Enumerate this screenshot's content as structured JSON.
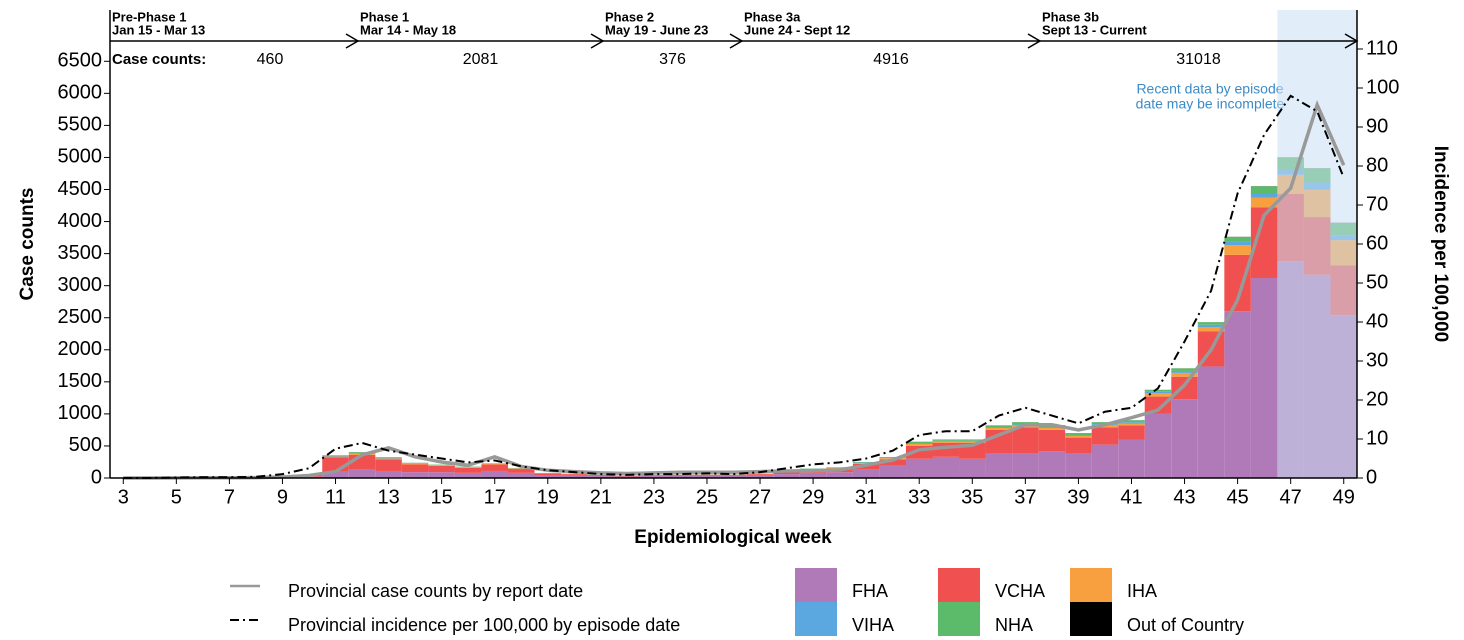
{
  "chart_data": {
    "type": "bar",
    "x": [
      3,
      4,
      5,
      6,
      7,
      8,
      9,
      10,
      11,
      12,
      13,
      14,
      15,
      16,
      17,
      18,
      19,
      20,
      21,
      22,
      23,
      24,
      25,
      26,
      27,
      28,
      29,
      30,
      31,
      32,
      33,
      34,
      35,
      36,
      37,
      38,
      39,
      40,
      41,
      42,
      43,
      44,
      45,
      46,
      47,
      48,
      49
    ],
    "xlim": [
      2.5,
      49.5
    ],
    "xticks": [
      3,
      5,
      7,
      9,
      11,
      13,
      15,
      17,
      19,
      21,
      23,
      25,
      27,
      29,
      31,
      33,
      35,
      37,
      39,
      41,
      43,
      45,
      47,
      49
    ],
    "ylim": [
      0,
      7300
    ],
    "yticks": [
      0,
      500,
      1000,
      1500,
      2000,
      2500,
      3000,
      3500,
      4000,
      4500,
      5000,
      5500,
      6000,
      6500
    ],
    "y2lim": [
      0,
      120
    ],
    "y2ticks": [
      0,
      10,
      20,
      30,
      40,
      50,
      60,
      70,
      80,
      90,
      100,
      110
    ],
    "xlabel": "Epidemiological week",
    "ylabel": "Case counts",
    "y2label": "Incidence per 100,000",
    "annotation": [
      "Recent data by episode",
      "date may be incomplete"
    ],
    "case_counts_label": "Case counts:",
    "phases": [
      {
        "name": "Pre-Phase 1",
        "dates": "Jan 15 - Mar 13",
        "count": 460
      },
      {
        "name": "Phase 1",
        "dates": "Mar 14 - May 18",
        "count": 2081
      },
      {
        "name": "Phase 2",
        "dates": "May 19 - June 23",
        "count": 376
      },
      {
        "name": "Phase 3a",
        "dates": "June 24 - Sept 12",
        "count": 4916
      },
      {
        "name": "Phase 3b",
        "dates": "Sept 13 - Current",
        "count": 31018
      }
    ],
    "series": [
      {
        "name": "FHA",
        "color": "#b07ab8",
        "values": [
          0,
          0,
          0,
          0,
          0,
          0,
          5,
          20,
          100,
          130,
          110,
          90,
          90,
          80,
          110,
          80,
          40,
          40,
          30,
          25,
          30,
          35,
          35,
          35,
          40,
          60,
          80,
          90,
          140,
          190,
          300,
          330,
          300,
          380,
          390,
          420,
          380,
          520,
          600,
          1000,
          1230,
          1740,
          2600,
          3120,
          3380,
          3170,
          2540
        ]
      },
      {
        "name": "VCHA",
        "color": "#f05050",
        "values": [
          0,
          1,
          2,
          2,
          2,
          2,
          10,
          25,
          220,
          230,
          180,
          120,
          100,
          80,
          100,
          60,
          30,
          20,
          15,
          10,
          12,
          15,
          15,
          15,
          20,
          35,
          50,
          55,
          80,
          100,
          200,
          220,
          250,
          370,
          400,
          330,
          250,
          270,
          220,
          270,
          350,
          550,
          880,
          1100,
          1050,
          900,
          780
        ]
      },
      {
        "name": "IHA",
        "color": "#f8a040",
        "values": [
          0,
          0,
          0,
          0,
          0,
          0,
          1,
          2,
          15,
          20,
          15,
          12,
          8,
          8,
          8,
          8,
          4,
          4,
          3,
          3,
          3,
          4,
          4,
          4,
          5,
          8,
          10,
          12,
          15,
          20,
          30,
          20,
          20,
          30,
          30,
          30,
          25,
          30,
          30,
          50,
          60,
          60,
          150,
          150,
          300,
          430,
          390
        ]
      },
      {
        "name": "VIHA",
        "color": "#5ba8e0",
        "values": [
          0,
          0,
          0,
          0,
          0,
          0,
          1,
          2,
          8,
          10,
          8,
          6,
          5,
          4,
          5,
          4,
          2,
          2,
          1,
          1,
          2,
          2,
          2,
          2,
          2,
          3,
          4,
          5,
          6,
          8,
          15,
          10,
          10,
          15,
          15,
          15,
          15,
          20,
          20,
          25,
          30,
          40,
          60,
          60,
          90,
          110,
          70
        ]
      },
      {
        "name": "NHA",
        "color": "#5cbb6a",
        "values": [
          0,
          0,
          0,
          0,
          0,
          0,
          0,
          1,
          7,
          10,
          10,
          8,
          6,
          6,
          6,
          5,
          3,
          3,
          2,
          2,
          2,
          2,
          2,
          2,
          3,
          4,
          5,
          6,
          8,
          10,
          20,
          20,
          20,
          25,
          35,
          30,
          30,
          30,
          30,
          30,
          40,
          40,
          70,
          120,
          180,
          220,
          200
        ]
      },
      {
        "name": "Out of Country",
        "color": "#000000",
        "values": [
          0,
          0,
          0,
          0,
          0,
          0,
          0,
          0,
          2,
          2,
          1,
          1,
          0,
          0,
          0,
          0,
          0,
          0,
          0,
          0,
          0,
          0,
          0,
          0,
          0,
          0,
          0,
          0,
          0,
          0,
          1,
          1,
          1,
          1,
          1,
          1,
          1,
          1,
          1,
          1,
          1,
          1,
          2,
          2,
          2,
          2,
          2
        ]
      },
      {
        "name": "Provincial case counts by report date",
        "type": "line",
        "color": "#999999",
        "values": [
          0,
          0,
          2,
          3,
          3,
          5,
          15,
          40,
          100,
          360,
          470,
          330,
          250,
          200,
          330,
          180,
          120,
          100,
          80,
          70,
          80,
          90,
          90,
          90,
          100,
          110,
          115,
          125,
          200,
          280,
          440,
          480,
          510,
          670,
          830,
          830,
          750,
          830,
          940,
          1060,
          1450,
          2000,
          2780,
          4100,
          4520,
          5820,
          4880
        ]
      },
      {
        "name": "Provincial incidence per 100,000 by episode date",
        "type": "line",
        "axis": "y2",
        "dash": "dashdot",
        "color": "#000000",
        "values": [
          0,
          0,
          0.1,
          0.2,
          0.2,
          0.3,
          1,
          2.5,
          7.5,
          9,
          7,
          6,
          5,
          4,
          4.5,
          3,
          2,
          1.5,
          1,
          0.8,
          1,
          1,
          1.2,
          1,
          1.5,
          2.5,
          3.5,
          4,
          5,
          7,
          11,
          12,
          12,
          16,
          18,
          16,
          14,
          17,
          18,
          23,
          35,
          48,
          73,
          88,
          98,
          94,
          77
        ]
      }
    ]
  }
}
